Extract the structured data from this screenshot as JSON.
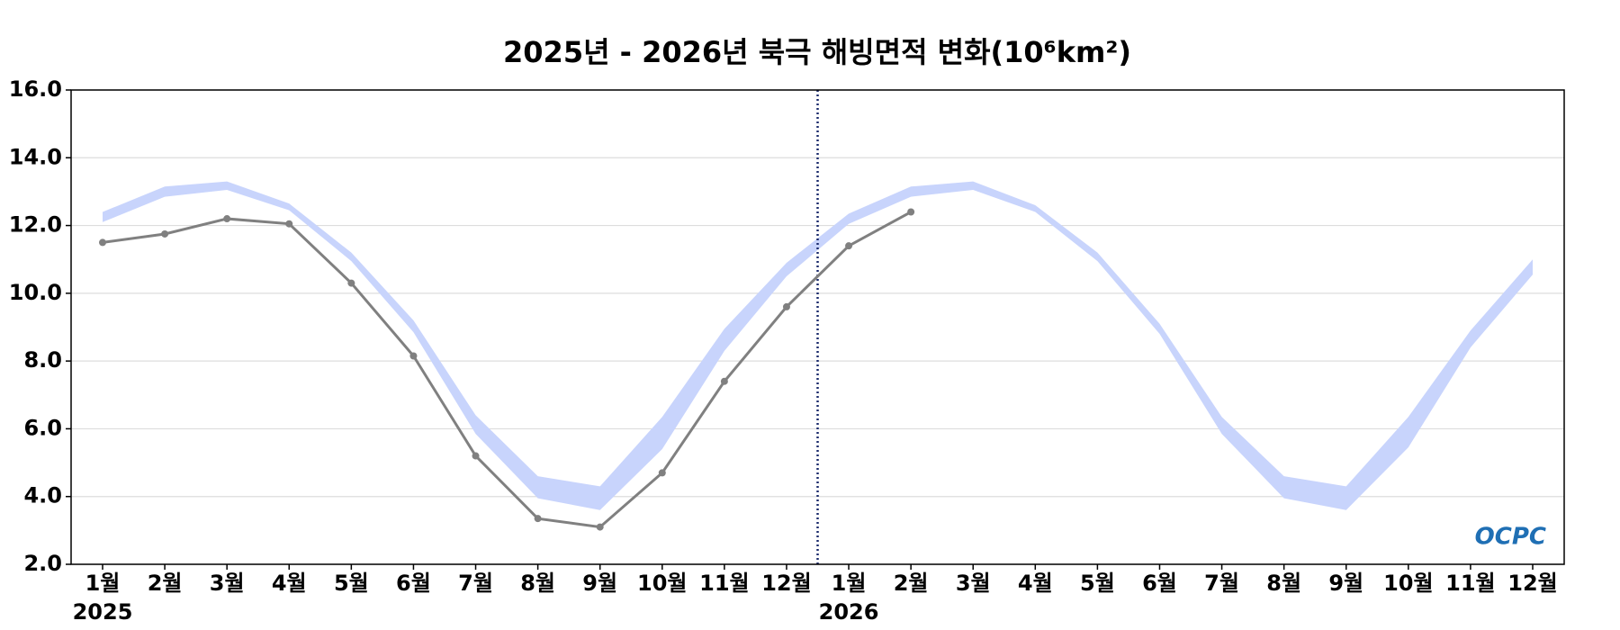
{
  "chart_data": {
    "type": "line",
    "title": "2025년 - 2026년 북극 해빙면적 변화(10⁶km²)",
    "categories": [
      "1월",
      "2월",
      "3월",
      "4월",
      "5월",
      "6월",
      "7월",
      "8월",
      "9월",
      "10월",
      "11월",
      "12월",
      "1월",
      "2월",
      "3월",
      "4월",
      "5월",
      "6월",
      "7월",
      "8월",
      "9월",
      "10월",
      "11월",
      "12월"
    ],
    "years": [
      "2025",
      "2026"
    ],
    "series": [
      {
        "color": "#808080",
        "values": [
          11.5,
          11.75,
          12.2,
          12.05,
          10.3,
          8.15,
          5.2,
          3.35,
          3.1,
          4.7,
          7.4,
          9.6,
          11.4,
          12.4,
          null,
          null,
          null,
          null,
          null,
          null,
          null,
          null,
          null,
          null
        ]
      }
    ],
    "bands": [
      {
        "color": "#c8d4fc",
        "low": [
          12.1,
          12.85,
          13.05,
          12.45,
          10.95,
          8.85,
          5.85,
          3.95,
          3.6,
          5.4,
          8.3,
          10.5,
          12.05,
          12.85,
          13.05,
          12.4,
          10.95,
          8.8,
          5.85,
          3.95,
          3.6,
          5.45,
          8.4,
          10.55
        ],
        "high": [
          12.4,
          13.15,
          13.3,
          12.65,
          11.2,
          9.2,
          6.4,
          4.6,
          4.3,
          6.35,
          8.95,
          10.9,
          12.35,
          13.15,
          13.3,
          12.6,
          11.2,
          9.1,
          6.35,
          4.6,
          4.3,
          6.35,
          8.9,
          11.0
        ]
      }
    ],
    "ylim": [
      2,
      16
    ],
    "yticks": [
      {
        "value": 2,
        "label": "2.0"
      },
      {
        "value": 4,
        "label": "4.0"
      },
      {
        "value": 6,
        "label": "6.0"
      },
      {
        "value": 8,
        "label": "8.0"
      },
      {
        "value": 10,
        "label": "10.0"
      },
      {
        "value": 12,
        "label": "12.0"
      },
      {
        "value": 14,
        "label": "14.0"
      },
      {
        "value": 16,
        "label": "16.0"
      }
    ],
    "grid": true,
    "year_divider_color": "#1a2a6c",
    "logo": "OCPC"
  }
}
